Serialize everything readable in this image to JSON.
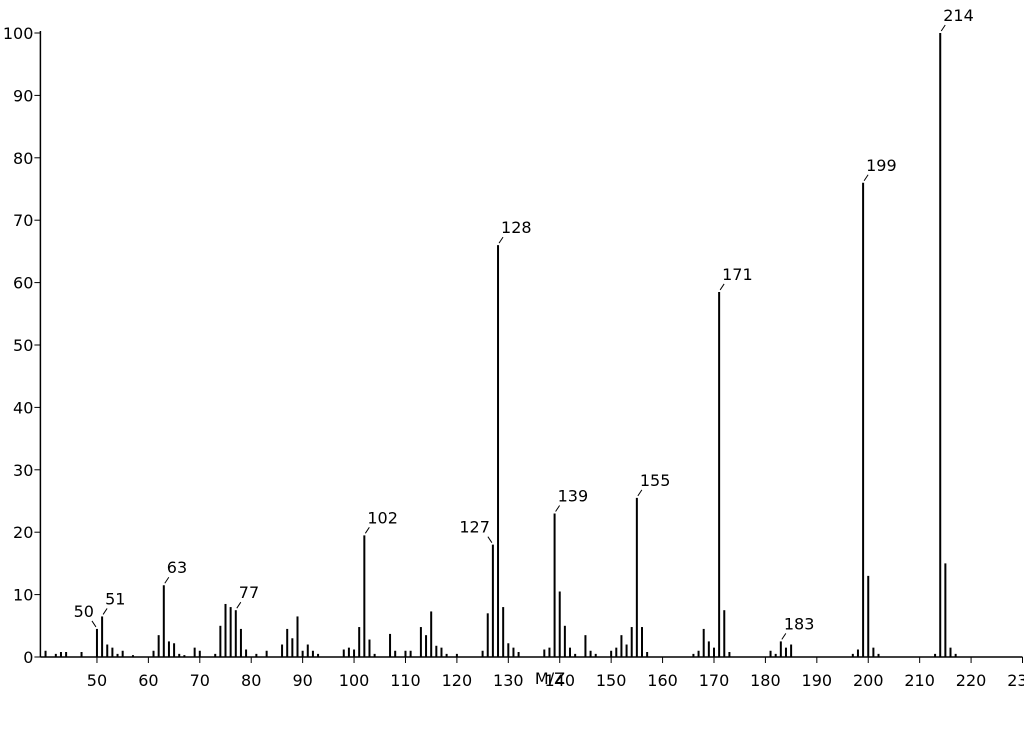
{
  "chart_data": {
    "type": "stem",
    "xlabel": "M/Z",
    "color": "#000000",
    "x": [
      40,
      42,
      43,
      44,
      47,
      50,
      51,
      52,
      53,
      54,
      55,
      57,
      61,
      62,
      63,
      64,
      65,
      66,
      67,
      69,
      70,
      73,
      74,
      75,
      76,
      77,
      78,
      79,
      81,
      83,
      86,
      87,
      88,
      89,
      90,
      91,
      92,
      93,
      98,
      99,
      100,
      101,
      102,
      103,
      104,
      107,
      108,
      110,
      111,
      113,
      114,
      115,
      116,
      117,
      118,
      120,
      125,
      126,
      127,
      128,
      129,
      130,
      131,
      132,
      137,
      138,
      139,
      140,
      141,
      142,
      143,
      145,
      146,
      147,
      150,
      151,
      152,
      153,
      154,
      155,
      156,
      157,
      166,
      167,
      168,
      169,
      170,
      171,
      172,
      173,
      181,
      182,
      183,
      184,
      185,
      197,
      198,
      199,
      200,
      201,
      202,
      213,
      214,
      215,
      216,
      217
    ],
    "values": [
      1,
      0.5,
      0.8,
      0.8,
      0.8,
      4.5,
      6.5,
      2,
      1.5,
      0.5,
      1,
      0.3,
      1,
      3.5,
      11.5,
      2.5,
      2.2,
      0.5,
      0.3,
      1.5,
      1,
      0.5,
      5,
      8.5,
      8,
      7.5,
      4.5,
      1.2,
      0.5,
      1,
      2,
      4.5,
      3,
      6.5,
      1,
      2,
      1,
      0.5,
      1.2,
      1.5,
      1.2,
      4.8,
      19.5,
      2.8,
      0.5,
      3.7,
      1,
      1,
      1,
      4.8,
      3.5,
      7.3,
      1.8,
      1.5,
      0.5,
      0.5,
      1,
      7,
      18,
      66,
      8,
      2.2,
      1.5,
      0.8,
      1.2,
      1.5,
      23,
      10.5,
      5,
      1.5,
      0.5,
      3.5,
      1,
      0.5,
      1,
      1.5,
      3.5,
      2,
      4.8,
      25.5,
      4.8,
      0.8,
      0.5,
      1,
      4.5,
      2.5,
      1.5,
      58.5,
      7.5,
      0.8,
      1,
      0.5,
      2.5,
      1.5,
      2,
      0.5,
      1.2,
      76,
      13,
      1.5,
      0.5,
      0.5,
      100,
      15,
      1.5,
      0.5
    ],
    "labels": [
      50,
      51,
      63,
      77,
      102,
      127,
      128,
      139,
      155,
      171,
      183,
      199,
      214
    ],
    "xlim": [
      39,
      230
    ],
    "xticks": [
      50,
      60,
      70,
      80,
      90,
      100,
      110,
      120,
      130,
      140,
      150,
      160,
      170,
      180,
      190,
      200,
      210,
      220,
      230
    ],
    "ylim": [
      0,
      100
    ],
    "yticks": [
      0,
      10,
      20,
      30,
      40,
      50,
      60,
      70,
      80,
      90,
      100
    ]
  }
}
